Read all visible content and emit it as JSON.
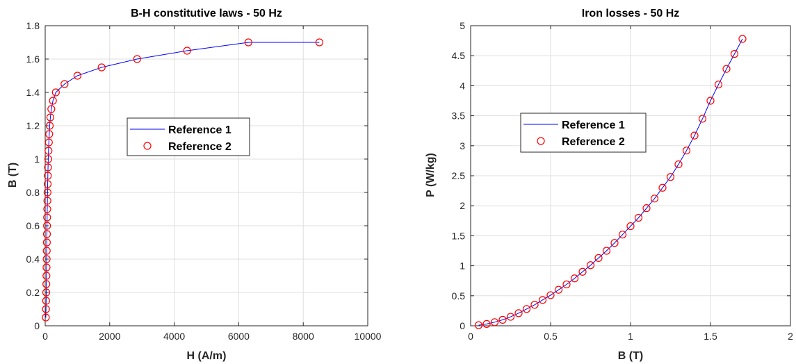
{
  "chart_data": [
    {
      "type": "line",
      "title": "B-H constitutive laws - 50 Hz",
      "xlabel": "H (A/m)",
      "ylabel": "B (T)",
      "xlim": [
        0,
        10000
      ],
      "ylim": [
        0,
        1.8
      ],
      "xticks": [
        0,
        2000,
        4000,
        6000,
        8000,
        10000
      ],
      "xtick_labels": [
        "0",
        "2000",
        "4000",
        "6000",
        "8000",
        "10000"
      ],
      "yticks": [
        0,
        0.2,
        0.4,
        0.6,
        0.8,
        1.0,
        1.2,
        1.4,
        1.6,
        1.8
      ],
      "ytick_labels": [
        "0",
        "0.2",
        "0.4",
        "0.6",
        "0.8",
        "1",
        "1.2",
        "1.4",
        "1.6",
        "1.8"
      ],
      "grid": true,
      "legend_position": "center",
      "series": [
        {
          "name": "Reference 1",
          "style": "line",
          "color": "#0000ff",
          "x": [
            20,
            25,
            30,
            33,
            36,
            39,
            42,
            45,
            48,
            51,
            54,
            57,
            60,
            64,
            68,
            72,
            77,
            82,
            88,
            95,
            103,
            113,
            125,
            140,
            160,
            190,
            240,
            330,
            600,
            1000,
            1750,
            2850,
            4400,
            6300,
            8500
          ],
          "y": [
            0.05,
            0.1,
            0.15,
            0.2,
            0.25,
            0.3,
            0.35,
            0.4,
            0.45,
            0.5,
            0.55,
            0.6,
            0.65,
            0.7,
            0.75,
            0.8,
            0.85,
            0.9,
            0.95,
            1.0,
            1.05,
            1.1,
            1.15,
            1.2,
            1.25,
            1.3,
            1.35,
            1.4,
            1.45,
            1.5,
            1.55,
            1.6,
            1.65,
            1.7,
            1.7
          ]
        },
        {
          "name": "Reference 2",
          "style": "marker",
          "color": "#ff0000",
          "x": [
            20,
            25,
            30,
            33,
            36,
            39,
            42,
            45,
            48,
            51,
            54,
            57,
            60,
            64,
            68,
            72,
            77,
            82,
            88,
            95,
            103,
            113,
            125,
            140,
            160,
            190,
            240,
            330,
            600,
            1000,
            1750,
            2850,
            4400,
            6300,
            8500
          ],
          "y": [
            0.05,
            0.1,
            0.15,
            0.2,
            0.25,
            0.3,
            0.35,
            0.4,
            0.45,
            0.5,
            0.55,
            0.6,
            0.65,
            0.7,
            0.75,
            0.8,
            0.85,
            0.9,
            0.95,
            1.0,
            1.05,
            1.1,
            1.15,
            1.2,
            1.25,
            1.3,
            1.35,
            1.4,
            1.45,
            1.5,
            1.55,
            1.6,
            1.65,
            1.7,
            1.7
          ]
        }
      ]
    },
    {
      "type": "line",
      "title": "Iron losses - 50 Hz",
      "xlabel": "B (T)",
      "ylabel": "P (W/kg)",
      "xlim": [
        0,
        2
      ],
      "ylim": [
        0,
        5
      ],
      "xticks": [
        0,
        0.5,
        1,
        1.5,
        2
      ],
      "xtick_labels": [
        "0",
        "0.5",
        "1",
        "1.5",
        "2"
      ],
      "yticks": [
        0,
        0.5,
        1,
        1.5,
        2,
        2.5,
        3,
        3.5,
        4,
        4.5,
        5
      ],
      "ytick_labels": [
        "0",
        "0.5",
        "1",
        "1.5",
        "2",
        "2.5",
        "3",
        "3.5",
        "4",
        "4.5",
        "5"
      ],
      "grid": true,
      "legend_position": "center-left",
      "series": [
        {
          "name": "Reference 1",
          "style": "line",
          "color": "#0000ff",
          "x": [
            0.05,
            0.1,
            0.15,
            0.2,
            0.25,
            0.3,
            0.35,
            0.4,
            0.45,
            0.5,
            0.55,
            0.6,
            0.65,
            0.7,
            0.75,
            0.8,
            0.85,
            0.9,
            0.95,
            1.0,
            1.05,
            1.1,
            1.15,
            1.2,
            1.25,
            1.3,
            1.35,
            1.4,
            1.45,
            1.5,
            1.55,
            1.6,
            1.65,
            1.7
          ],
          "y": [
            0.01,
            0.03,
            0.06,
            0.1,
            0.15,
            0.21,
            0.28,
            0.35,
            0.43,
            0.51,
            0.6,
            0.69,
            0.79,
            0.9,
            1.01,
            1.13,
            1.25,
            1.38,
            1.52,
            1.66,
            1.8,
            1.96,
            2.12,
            2.3,
            2.48,
            2.69,
            2.92,
            3.17,
            3.45,
            3.75,
            4.02,
            4.28,
            4.53,
            4.78
          ]
        },
        {
          "name": "Reference 2",
          "style": "marker",
          "color": "#ff0000",
          "x": [
            0.05,
            0.1,
            0.15,
            0.2,
            0.25,
            0.3,
            0.35,
            0.4,
            0.45,
            0.5,
            0.55,
            0.6,
            0.65,
            0.7,
            0.75,
            0.8,
            0.85,
            0.9,
            0.95,
            1.0,
            1.05,
            1.1,
            1.15,
            1.2,
            1.25,
            1.3,
            1.35,
            1.4,
            1.45,
            1.5,
            1.55,
            1.6,
            1.65,
            1.7
          ],
          "y": [
            0.01,
            0.03,
            0.06,
            0.1,
            0.15,
            0.21,
            0.28,
            0.35,
            0.43,
            0.51,
            0.6,
            0.69,
            0.79,
            0.9,
            1.01,
            1.13,
            1.25,
            1.38,
            1.52,
            1.66,
            1.8,
            1.96,
            2.12,
            2.3,
            2.48,
            2.69,
            2.92,
            3.17,
            3.45,
            3.75,
            4.02,
            4.28,
            4.53,
            4.78
          ]
        }
      ]
    }
  ]
}
